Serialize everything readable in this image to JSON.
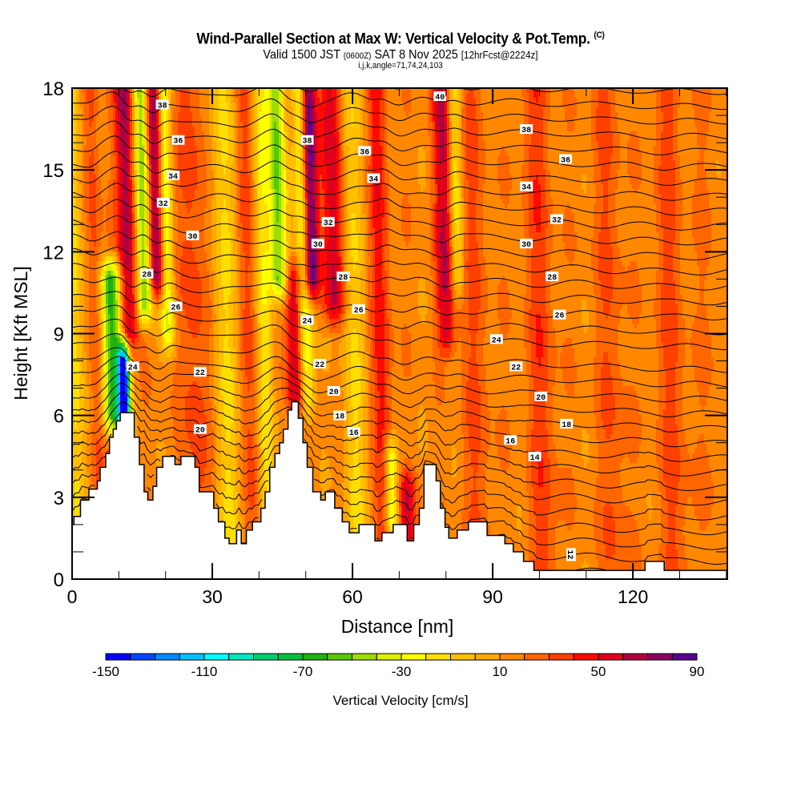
{
  "header": {
    "title": "Wind-Parallel Section at Max W: Vertical Velocity & Pot.Temp.",
    "copyright": "(C)",
    "valid_prefix": "Valid 1500 JST",
    "valid_utc": "(0600Z)",
    "valid_date": "SAT 8 Nov 2025",
    "forecast": "[12hrFcst@2224z]",
    "indices": "i,j,k,angle=71,74,24,103"
  },
  "chart_data": {
    "type": "heatmap",
    "title": "Wind-Parallel Section at Max W: Vertical Velocity & Pot.Temp.",
    "xlabel": "Distance [nm]",
    "ylabel": "Height [Kft MSL]",
    "xlim": [
      0,
      140.2
    ],
    "ylim": [
      0,
      18
    ],
    "x_ticks": [
      0,
      30,
      60,
      90,
      120
    ],
    "x_tick_labels": [
      "0",
      "30",
      "60",
      "90",
      "120"
    ],
    "x_minor_step": 10,
    "y_ticks": [
      0,
      3,
      6,
      9,
      12,
      15,
      18
    ],
    "y_tick_labels": [
      "0",
      "3",
      "6",
      "9",
      "12",
      "15",
      "18"
    ],
    "y_minor_step": 1,
    "colorbar": {
      "title": "Vertical Velocity [cm/s]",
      "min": -150,
      "max": 90,
      "step": 10,
      "tick_values": [
        -150,
        -110,
        -70,
        -30,
        10,
        50,
        90
      ],
      "tick_labels": [
        "-150",
        "-110",
        "-70",
        "-30",
        "10",
        "50",
        "90"
      ],
      "colors": [
        "#0a00ff",
        "#0048ff",
        "#0088ff",
        "#00c0ff",
        "#00ffff",
        "#00e8c0",
        "#00d070",
        "#00c040",
        "#20b010",
        "#58c800",
        "#a0dc00",
        "#dcf000",
        "#ffff00",
        "#ffde00",
        "#ffc000",
        "#ffa800",
        "#ff8800",
        "#ff6600",
        "#ff4000",
        "#ff0a00",
        "#e0001e",
        "#b00040",
        "#8c0060",
        "#5a0090"
      ],
      "position": "bottom"
    },
    "background_w": 15,
    "w_features": [
      {
        "x": 0.5,
        "width": 2.0,
        "w": -25
      },
      {
        "x": 5,
        "width": 1.5,
        "w": 25
      },
      {
        "x": 8.5,
        "width": 2.2,
        "w": -80,
        "zmin": 6,
        "zmax": 11,
        "note": "downdraft lee"
      },
      {
        "x": 10.8,
        "width": 1.3,
        "w": -140,
        "zmin": 5.9,
        "zmax": 8
      },
      {
        "x": 12,
        "width": 2.0,
        "w": 60,
        "zmin": 9,
        "zmax": 18
      },
      {
        "x": 15.5,
        "width": 1.6,
        "w": -65,
        "zmin": 10,
        "zmax": 18
      },
      {
        "x": 18.3,
        "width": 1.6,
        "w": 65,
        "zmin": 11,
        "zmax": 18
      },
      {
        "x": 20.5,
        "width": 1.4,
        "w": -40,
        "zmin": 9,
        "zmax": 18
      },
      {
        "x": 26,
        "width": 3,
        "w": 25
      },
      {
        "x": 33,
        "width": 3,
        "w": -20
      },
      {
        "x": 38,
        "width": 2.5,
        "w": 25
      },
      {
        "x": 41,
        "width": 2,
        "w": -30
      },
      {
        "x": 44.5,
        "width": 1.8,
        "w": -65,
        "zmin": 11,
        "zmax": 18
      },
      {
        "x": 47.5,
        "width": 1.8,
        "w": 55,
        "zmin": 6.6,
        "zmax": 11
      },
      {
        "x": 49.8,
        "width": 1.6,
        "w": -45,
        "zmin": 6.6,
        "zmax": 18
      },
      {
        "x": 51.3,
        "width": 1.6,
        "w": 80,
        "zmin": 11,
        "zmax": 18
      },
      {
        "x": 56,
        "width": 2.5,
        "w": 50,
        "zmin": 10,
        "zmax": 18
      },
      {
        "x": 60,
        "width": 2.5,
        "w": -20
      },
      {
        "x": 66,
        "width": 2,
        "w": 35
      },
      {
        "x": 67.5,
        "width": 1.5,
        "w": -50,
        "zmin": 2,
        "zmax": 4.5
      },
      {
        "x": 70.8,
        "width": 2,
        "w": 45,
        "zmin": 1.7,
        "zmax": 3.2
      },
      {
        "x": 80,
        "width": 2,
        "w": 50,
        "zmin": 9,
        "zmax": 18
      },
      {
        "x": 82.5,
        "width": 1.5,
        "w": -30,
        "zmin": 11,
        "zmax": 18
      },
      {
        "x": 86,
        "width": 3,
        "w": 20
      },
      {
        "x": 92,
        "width": 2.5,
        "w": 5
      },
      {
        "x": 100,
        "width": 3,
        "w": 25
      },
      {
        "x": 108,
        "width": 3,
        "w": 5
      },
      {
        "x": 115,
        "width": 3,
        "w": 20
      },
      {
        "x": 122,
        "width": 2.5,
        "w": 5
      },
      {
        "x": 128,
        "width": 3,
        "w": 22
      },
      {
        "x": 136,
        "width": 2.5,
        "w": 10
      }
    ],
    "terrain": [
      [
        0,
        2.0
      ],
      [
        0.4,
        2.0
      ],
      [
        0.4,
        2.3
      ],
      [
        1.8,
        2.3
      ],
      [
        1.8,
        2.9
      ],
      [
        3.6,
        2.9
      ],
      [
        3.6,
        3.3
      ],
      [
        5.4,
        3.3
      ],
      [
        5.4,
        3.6
      ],
      [
        6.0,
        3.6
      ],
      [
        6.0,
        4.1
      ],
      [
        7.2,
        4.1
      ],
      [
        7.2,
        4.6
      ],
      [
        8.0,
        4.6
      ],
      [
        8.0,
        5.2
      ],
      [
        8.8,
        5.2
      ],
      [
        8.8,
        5.5
      ],
      [
        9.5,
        5.5
      ],
      [
        9.5,
        5.8
      ],
      [
        10.3,
        5.8
      ],
      [
        10.3,
        6.1
      ],
      [
        13.3,
        6.1
      ],
      [
        13.3,
        5.2
      ],
      [
        14.4,
        5.2
      ],
      [
        14.4,
        4.2
      ],
      [
        15.4,
        4.2
      ],
      [
        15.4,
        3.2
      ],
      [
        16.2,
        3.2
      ],
      [
        16.2,
        2.9
      ],
      [
        17.3,
        2.9
      ],
      [
        17.3,
        3.4
      ],
      [
        18.1,
        3.4
      ],
      [
        18.1,
        4.1
      ],
      [
        19.4,
        4.1
      ],
      [
        19.4,
        4.5
      ],
      [
        22.0,
        4.5
      ],
      [
        22.0,
        4.2
      ],
      [
        23.3,
        4.2
      ],
      [
        23.3,
        4.5
      ],
      [
        26.3,
        4.5
      ],
      [
        26.3,
        4.1
      ],
      [
        27.2,
        4.1
      ],
      [
        27.2,
        3.2
      ],
      [
        30.3,
        3.2
      ],
      [
        30.3,
        2.6
      ],
      [
        31.3,
        2.6
      ],
      [
        31.3,
        2.1
      ],
      [
        32.7,
        2.1
      ],
      [
        32.7,
        1.5
      ],
      [
        33.6,
        1.5
      ],
      [
        33.6,
        1.3
      ],
      [
        35.2,
        1.3
      ],
      [
        35.2,
        1.8
      ],
      [
        36.2,
        1.8
      ],
      [
        36.2,
        1.3
      ],
      [
        37.3,
        1.3
      ],
      [
        37.3,
        1.8
      ],
      [
        38.6,
        1.8
      ],
      [
        38.6,
        2.1
      ],
      [
        40.4,
        2.1
      ],
      [
        40.4,
        2.6
      ],
      [
        41.3,
        2.6
      ],
      [
        41.3,
        3.2
      ],
      [
        42.3,
        3.2
      ],
      [
        42.3,
        4.1
      ],
      [
        43.4,
        4.1
      ],
      [
        43.4,
        4.6
      ],
      [
        44.4,
        4.6
      ],
      [
        44.4,
        5.0
      ],
      [
        45.2,
        5.0
      ],
      [
        45.2,
        5.5
      ],
      [
        46.2,
        5.5
      ],
      [
        46.2,
        6.2
      ],
      [
        47.0,
        6.2
      ],
      [
        47.0,
        6.5
      ],
      [
        48.4,
        6.5
      ],
      [
        48.4,
        5.9
      ],
      [
        49.4,
        5.9
      ],
      [
        49.4,
        5.0
      ],
      [
        50.3,
        5.0
      ],
      [
        50.3,
        4.1
      ],
      [
        51.5,
        4.1
      ],
      [
        51.5,
        3.2
      ],
      [
        53.2,
        3.2
      ],
      [
        53.2,
        2.9
      ],
      [
        54.2,
        2.9
      ],
      [
        54.2,
        3.2
      ],
      [
        56.2,
        3.2
      ],
      [
        56.2,
        2.6
      ],
      [
        57.8,
        2.6
      ],
      [
        57.8,
        2.1
      ],
      [
        59.3,
        2.1
      ],
      [
        59.3,
        1.7
      ],
      [
        61.4,
        1.7
      ],
      [
        61.4,
        2.0
      ],
      [
        64.8,
        2.0
      ],
      [
        64.8,
        1.4
      ],
      [
        66.3,
        1.4
      ],
      [
        66.3,
        1.7
      ],
      [
        68.7,
        1.7
      ],
      [
        68.7,
        2.0
      ],
      [
        69.8,
        2.0
      ],
      [
        69.8,
        2.0
      ],
      [
        71.7,
        2.0
      ],
      [
        71.7,
        1.4
      ],
      [
        73.1,
        1.4
      ],
      [
        73.1,
        2.0
      ],
      [
        74.3,
        2.0
      ],
      [
        74.3,
        2.6
      ],
      [
        75.3,
        2.6
      ],
      [
        75.3,
        4.2
      ],
      [
        77.9,
        4.2
      ],
      [
        77.9,
        3.6
      ],
      [
        78.8,
        3.6
      ],
      [
        78.8,
        2.6
      ],
      [
        79.8,
        2.6
      ],
      [
        79.8,
        1.9
      ],
      [
        80.6,
        1.9
      ],
      [
        80.6,
        1.5
      ],
      [
        82.4,
        1.5
      ],
      [
        82.4,
        1.8
      ],
      [
        84.8,
        1.8
      ],
      [
        84.8,
        2.1
      ],
      [
        88.8,
        2.1
      ],
      [
        88.8,
        1.6
      ],
      [
        92.6,
        1.6
      ],
      [
        92.6,
        1.3
      ],
      [
        94.4,
        1.3
      ],
      [
        94.4,
        1.0
      ],
      [
        96.6,
        1.0
      ],
      [
        96.6,
        0.65
      ],
      [
        98.8,
        0.65
      ],
      [
        98.8,
        0.32
      ],
      [
        122.6,
        0.32
      ],
      [
        122.6,
        0.65
      ],
      [
        126.7,
        0.65
      ],
      [
        126.7,
        0.32
      ],
      [
        140.2,
        0.32
      ]
    ],
    "isentrope_labels": [
      {
        "text": "38",
        "x": 19.3,
        "z": 17.4
      },
      {
        "text": "36",
        "x": 22.7,
        "z": 16.1
      },
      {
        "text": "34",
        "x": 21.6,
        "z": 14.8
      },
      {
        "text": "32",
        "x": 19.5,
        "z": 13.8
      },
      {
        "text": "30",
        "x": 25.8,
        "z": 12.6
      },
      {
        "text": "28",
        "x": 16.0,
        "z": 11.2
      },
      {
        "text": "26",
        "x": 22.2,
        "z": 10.0
      },
      {
        "text": "24",
        "x": 13.0,
        "z": 7.8
      },
      {
        "text": "22",
        "x": 27.4,
        "z": 7.6
      },
      {
        "text": "20",
        "x": 27.4,
        "z": 5.5
      },
      {
        "text": "38",
        "x": 50.3,
        "z": 16.1
      },
      {
        "text": "36",
        "x": 62.6,
        "z": 15.7
      },
      {
        "text": "34",
        "x": 64.5,
        "z": 14.7
      },
      {
        "text": "32",
        "x": 54.8,
        "z": 13.1
      },
      {
        "text": "30",
        "x": 52.6,
        "z": 12.3
      },
      {
        "text": "28",
        "x": 58.0,
        "z": 11.1
      },
      {
        "text": "26",
        "x": 61.3,
        "z": 9.9
      },
      {
        "text": "24",
        "x": 50.3,
        "z": 9.5
      },
      {
        "text": "22",
        "x": 53.0,
        "z": 7.9
      },
      {
        "text": "20",
        "x": 56.0,
        "z": 6.9
      },
      {
        "text": "18",
        "x": 57.3,
        "z": 6.0
      },
      {
        "text": "16",
        "x": 60.3,
        "z": 5.4
      },
      {
        "text": "40",
        "x": 78.7,
        "z": 17.7
      },
      {
        "text": "38",
        "x": 97.2,
        "z": 16.5
      },
      {
        "text": "36",
        "x": 105.6,
        "z": 15.4
      },
      {
        "text": "34",
        "x": 97.2,
        "z": 14.4
      },
      {
        "text": "32",
        "x": 103.7,
        "z": 13.2
      },
      {
        "text": "30",
        "x": 97.2,
        "z": 12.3
      },
      {
        "text": "28",
        "x": 102.7,
        "z": 11.1
      },
      {
        "text": "26",
        "x": 104.3,
        "z": 9.7
      },
      {
        "text": "24",
        "x": 90.8,
        "z": 8.8
      },
      {
        "text": "22",
        "x": 95.0,
        "z": 7.8
      },
      {
        "text": "20",
        "x": 100.3,
        "z": 6.7
      },
      {
        "text": "18",
        "x": 105.8,
        "z": 5.7
      },
      {
        "text": "16",
        "x": 93.8,
        "z": 5.1
      },
      {
        "text": "14",
        "x": 99.0,
        "z": 4.5
      },
      {
        "text": "12",
        "x": 106.8,
        "z": 0.9,
        "rotate": 90
      }
    ]
  }
}
